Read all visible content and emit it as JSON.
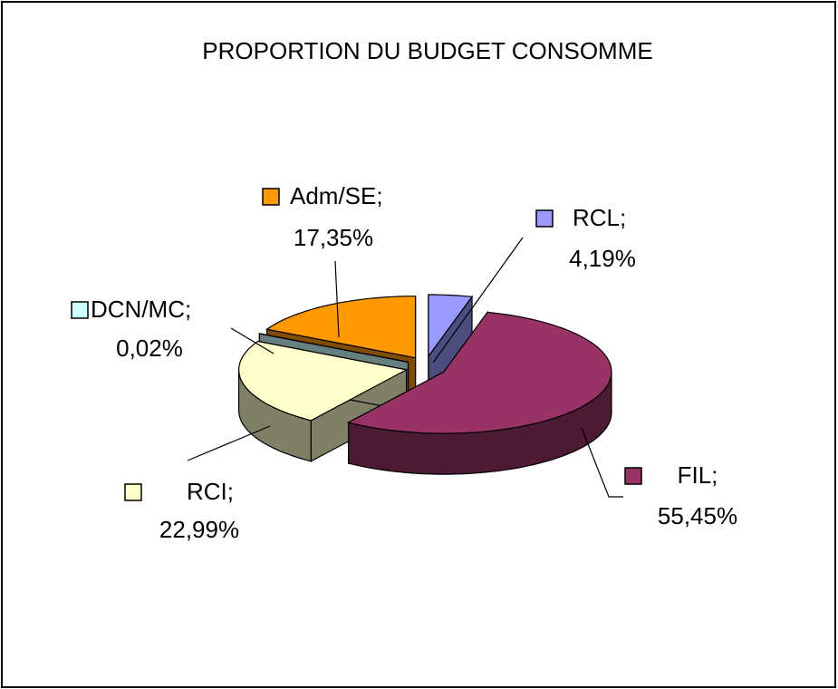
{
  "chart_data": {
    "type": "pie",
    "title": "PROPORTION DU BUDGET CONSOMME",
    "categories": [
      "RCL;",
      "FIL;",
      "RCI;",
      "DCN/MC;",
      "Adm/SE;"
    ],
    "values": [
      4.19,
      55.45,
      22.99,
      0.02,
      17.35
    ],
    "value_labels": [
      "4,19%",
      "55,45%",
      "22,99%",
      "0,02%",
      "17,35%"
    ],
    "colors": [
      "#9999ff",
      "#993366",
      "#ffffcc",
      "#ccffff",
      "#ff9900"
    ]
  }
}
